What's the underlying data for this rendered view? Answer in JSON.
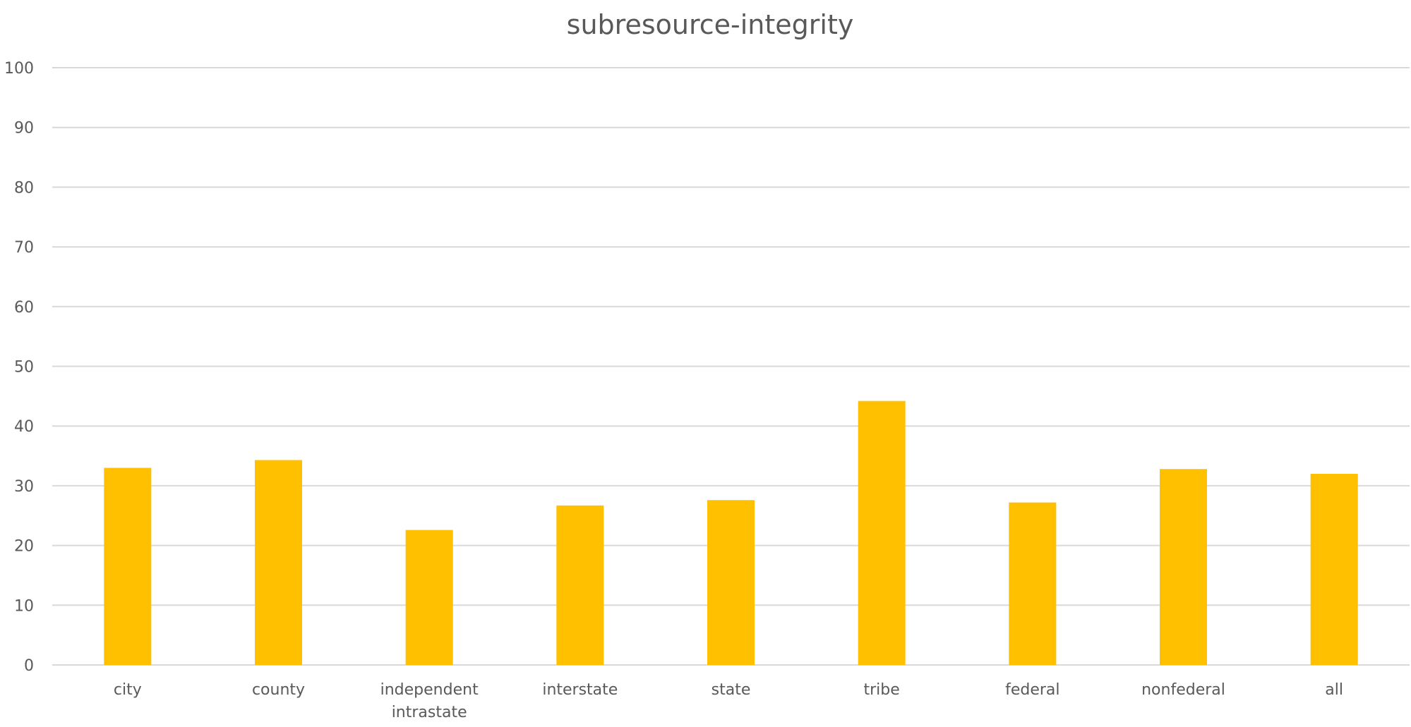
{
  "chart_data": {
    "type": "bar",
    "title": "subresource-integrity",
    "xlabel": "",
    "ylabel": "",
    "categories": [
      [
        "city"
      ],
      [
        "county"
      ],
      [
        "independent",
        "intrastate"
      ],
      [
        "interstate"
      ],
      [
        "state"
      ],
      [
        "tribe"
      ],
      [
        "federal"
      ],
      [
        "nonfederal"
      ],
      [
        "all"
      ]
    ],
    "values": [
      33.0,
      34.3,
      22.6,
      26.7,
      27.6,
      44.2,
      27.2,
      32.8,
      32.0
    ],
    "ylim": [
      0,
      100
    ],
    "yticks": [
      0,
      10,
      20,
      30,
      40,
      50,
      60,
      70,
      80,
      90,
      100
    ],
    "grid": true,
    "legend": "none",
    "colors": {
      "bar": "#FFC000",
      "gridline": "#D9D9D9",
      "text": "#595959"
    }
  }
}
